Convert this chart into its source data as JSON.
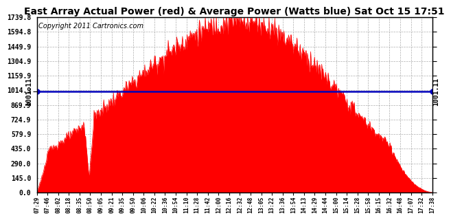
{
  "title": "East Array Actual Power (red) & Average Power (Watts blue) Sat Oct 15 17:51",
  "copyright": "Copyright 2011 Cartronics.com",
  "average_power": 1001.11,
  "y_ticks_right": [
    0.0,
    145.0,
    290.0,
    435.0,
    579.9,
    724.9,
    869.9,
    1014.9,
    1159.9,
    1304.9,
    1449.9,
    1594.8,
    1739.8
  ],
  "ylim": [
    0,
    1739.8
  ],
  "x_labels": [
    "07:29",
    "07:46",
    "08:02",
    "08:18",
    "08:35",
    "08:50",
    "09:05",
    "09:21",
    "09:35",
    "09:50",
    "10:06",
    "10:22",
    "10:36",
    "10:54",
    "11:10",
    "11:28",
    "11:42",
    "12:00",
    "12:16",
    "12:32",
    "12:48",
    "13:05",
    "13:22",
    "13:36",
    "13:54",
    "14:13",
    "14:29",
    "14:44",
    "15:00",
    "15:14",
    "15:28",
    "15:58",
    "16:15",
    "16:32",
    "16:48",
    "17:07",
    "17:32",
    "17:38"
  ],
  "bg_color": "#ffffff",
  "fill_color": "#ff0000",
  "line_color": "#0000bb",
  "title_fontsize": 10,
  "copyright_fontsize": 7,
  "grid_color": "#999999",
  "border_color": "#000000",
  "peak_power": 1739.8,
  "avg_label": "1001.11"
}
